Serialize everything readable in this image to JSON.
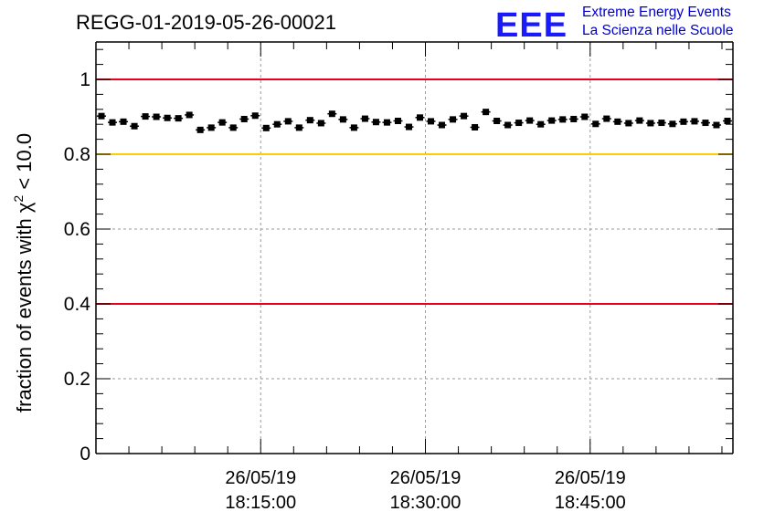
{
  "header": {
    "run_id": "REGG-01-2019-05-26-00021",
    "logo_text": "EEE",
    "logo_line1": "Extreme Energy Events",
    "logo_line2": "La Scienza nelle Scuole"
  },
  "colors": {
    "upper_limit": "#e8001c",
    "lower_limit": "#e8001c",
    "reference": "#ffcc00",
    "points": "#000000",
    "logo": "#1a1aff"
  },
  "chart_data": {
    "type": "scatter",
    "title": "REGG-01-2019-05-26-00021",
    "ylabel_prefix": "fraction of events with χ",
    "ylabel_sup": "2",
    "ylabel_suffix": " < 10.0",
    "ylim": [
      0,
      1.1
    ],
    "yticks": [
      0,
      0.2,
      0.4,
      0.6,
      0.8,
      1
    ],
    "ytick_labels": [
      "0",
      "0.2",
      "0.4",
      "0.6",
      "0.8",
      "1"
    ],
    "xticks": [
      {
        "date": "26/05/19",
        "time": "18:15:00"
      },
      {
        "date": "26/05/19",
        "time": "18:30:00"
      },
      {
        "date": "26/05/19",
        "time": "18:45:00"
      }
    ],
    "xlim": [
      "2019-05-26 18:00:00",
      "2019-05-26 18:58:00"
    ],
    "grid": "dashed at 0.2 and 0.6",
    "reference_lines": [
      {
        "y": 1.0,
        "color": "red"
      },
      {
        "y": 0.8,
        "color": "yellow"
      },
      {
        "y": 0.4,
        "color": "red"
      }
    ],
    "x_minutes_after_1800": [
      0.5,
      1.5,
      2.5,
      3.5,
      4.5,
      5.5,
      6.5,
      7.5,
      8.5,
      9.5,
      10.5,
      11.5,
      12.5,
      13.5,
      14.5,
      15.5,
      16.5,
      17.5,
      18.5,
      19.5,
      20.5,
      21.5,
      22.5,
      23.5,
      24.5,
      25.5,
      26.5,
      27.5,
      28.5,
      29.5,
      30.5,
      31.5,
      32.5,
      33.5,
      34.5,
      35.5,
      36.5,
      37.5,
      38.5,
      39.5,
      40.5,
      41.5,
      42.5,
      43.5,
      44.5,
      45.5,
      46.5,
      47.5,
      48.5,
      49.5,
      50.5,
      51.5,
      52.5,
      53.5,
      54.5,
      55.5,
      56.5,
      57.5
    ],
    "y": [
      0.902,
      0.885,
      0.887,
      0.875,
      0.901,
      0.9,
      0.897,
      0.896,
      0.905,
      0.865,
      0.871,
      0.885,
      0.871,
      0.894,
      0.903,
      0.87,
      0.88,
      0.888,
      0.871,
      0.891,
      0.883,
      0.908,
      0.893,
      0.871,
      0.895,
      0.886,
      0.885,
      0.889,
      0.873,
      0.898,
      0.888,
      0.878,
      0.893,
      0.902,
      0.872,
      0.913,
      0.889,
      0.878,
      0.884,
      0.89,
      0.88,
      0.89,
      0.893,
      0.894,
      0.9,
      0.881,
      0.895,
      0.887,
      0.883,
      0.89,
      0.883,
      0.884,
      0.881,
      0.887,
      0.888,
      0.884,
      0.878,
      0.889
    ],
    "yerr": 0.007
  }
}
